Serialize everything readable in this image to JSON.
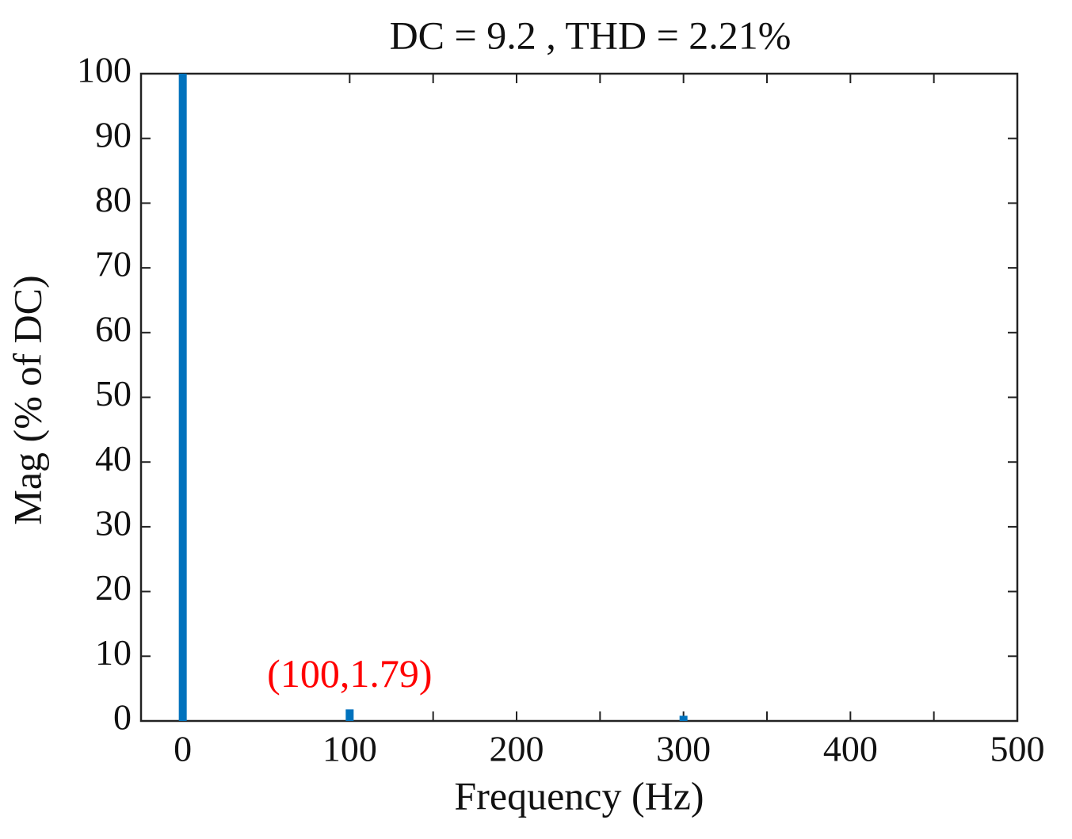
{
  "chart_data": {
    "type": "bar",
    "title": "DC = 9.2 , THD = 2.21%",
    "x_label": "Frequency (Hz)",
    "y_label": "Mag (% of DC)",
    "x": [
      0,
      100,
      300
    ],
    "values": [
      100,
      1.79,
      0.8
    ],
    "color": "#0072bd",
    "xlim": [
      -25,
      500
    ],
    "xticks": [
      0,
      100,
      200,
      300,
      400,
      500
    ],
    "xminor_ticks": [
      150,
      250,
      350,
      450
    ],
    "ylim": [
      0,
      100
    ],
    "yticks": [
      0,
      10,
      20,
      30,
      40,
      50,
      60,
      70,
      80,
      90,
      100
    ],
    "grid": false,
    "annotations": [
      {
        "text": "(100,1.79)",
        "x": 100,
        "y": 1.79,
        "color": "#ff0000"
      }
    ]
  }
}
